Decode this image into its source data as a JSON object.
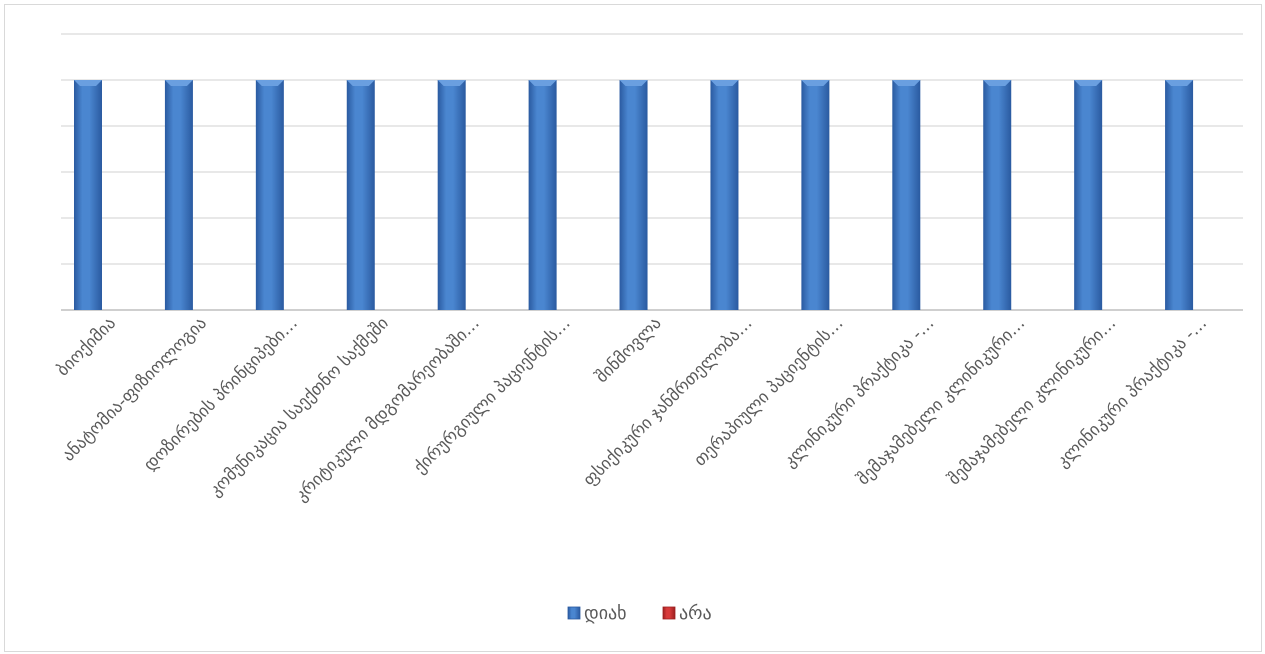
{
  "chart_data": {
    "type": "bar",
    "categories": [
      "ბიოქიმია",
      "ანატომია-ფიზიოლოგია",
      "დოზირების პრინციპები…",
      "კომუნიკაცია საექთნო საქმეში",
      "კრიტიკული მდგომარეობაში…",
      "ქირურგიული პაციენტის…",
      "შინმოვლა",
      "ფსიქიკური ჯანმრთელობა…",
      "თერაპიული პაციენტის…",
      "კლინიკური პრაქტიკა -…",
      "შემაჯამებელი კლინიკური…",
      "შემაჯამებელი კლინიკური…",
      "კლინიკური პრაქტიკა -…"
    ],
    "series": [
      {
        "name": "დიახ",
        "color": "#4a86d0",
        "values": [
          5,
          5,
          5,
          5,
          5,
          5,
          5,
          5,
          5,
          5,
          5,
          5,
          5
        ]
      },
      {
        "name": "არა",
        "color": "#d83a3a",
        "values": [
          0,
          0,
          0,
          0,
          0,
          0,
          0,
          0,
          0,
          0,
          0,
          0,
          0
        ]
      }
    ],
    "ylim": [
      0,
      6
    ],
    "grid": true,
    "legend_position": "bottom",
    "title": "",
    "xlabel": "",
    "ylabel": ""
  }
}
